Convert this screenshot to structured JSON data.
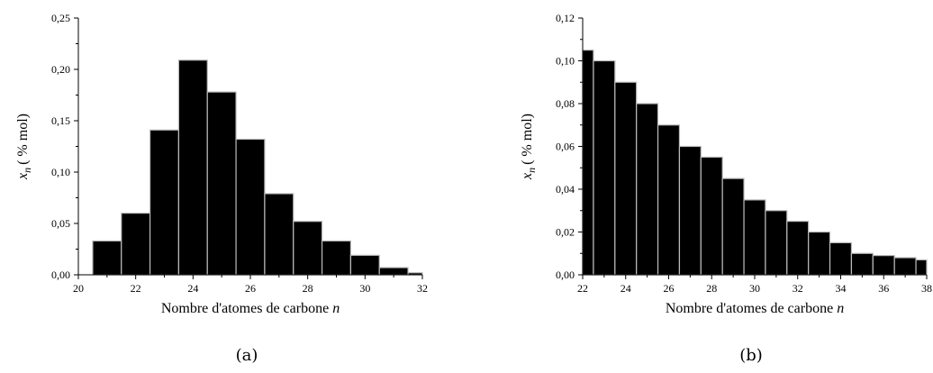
{
  "chart_data": [
    {
      "type": "bar",
      "caption": "(a)",
      "xlabel": "Nombre d'atomes de carbone",
      "xlabel_var": "n",
      "ylabel": "x",
      "ylabel_sub": "n",
      "ylabel_unit": "( % mol)",
      "xlim": [
        20,
        32
      ],
      "ylim": [
        0,
        0.25
      ],
      "xticks": [
        20,
        22,
        24,
        26,
        28,
        30,
        32
      ],
      "yticks": [
        0,
        0.05,
        0.1,
        0.15,
        0.2,
        0.25
      ],
      "xtick_labels": [
        "20",
        "22",
        "24",
        "26",
        "28",
        "30",
        "32"
      ],
      "ytick_labels": [
        "0,00",
        "0,05",
        "0,10",
        "0,15",
        "0,20",
        "0,25"
      ],
      "categories": [
        21,
        22,
        23,
        24,
        25,
        26,
        27,
        28,
        29,
        30,
        31,
        32
      ],
      "values": [
        0.033,
        0.06,
        0.141,
        0.209,
        0.178,
        0.132,
        0.079,
        0.052,
        0.033,
        0.019,
        0.007,
        0.002
      ],
      "bar_color": "#000000",
      "bar_edge_color": "#bbbbbb"
    },
    {
      "type": "bar",
      "caption": "(b)",
      "xlabel": "Nombre d'atomes de carbone",
      "xlabel_var": "n",
      "ylabel": "x",
      "ylabel_sub": "n",
      "ylabel_unit": "( % mol)",
      "xlim": [
        22,
        38
      ],
      "ylim": [
        0,
        0.12
      ],
      "xticks": [
        22,
        24,
        26,
        28,
        30,
        32,
        34,
        36,
        38
      ],
      "yticks": [
        0,
        0.02,
        0.04,
        0.06,
        0.08,
        0.1,
        0.12
      ],
      "xtick_labels": [
        "22",
        "24",
        "26",
        "28",
        "30",
        "32",
        "34",
        "36",
        "38"
      ],
      "ytick_labels": [
        "0,00",
        "0,02",
        "0,04",
        "0,06",
        "0,08",
        "0,10",
        "0,12"
      ],
      "categories": [
        22,
        23,
        24,
        25,
        26,
        27,
        28,
        29,
        30,
        31,
        32,
        33,
        34,
        35,
        36,
        37,
        38
      ],
      "values": [
        0.105,
        0.1,
        0.09,
        0.08,
        0.07,
        0.06,
        0.055,
        0.045,
        0.035,
        0.03,
        0.025,
        0.02,
        0.015,
        0.01,
        0.009,
        0.008,
        0.007
      ],
      "bar_color": "#000000",
      "bar_edge_color": "#bbbbbb"
    }
  ]
}
